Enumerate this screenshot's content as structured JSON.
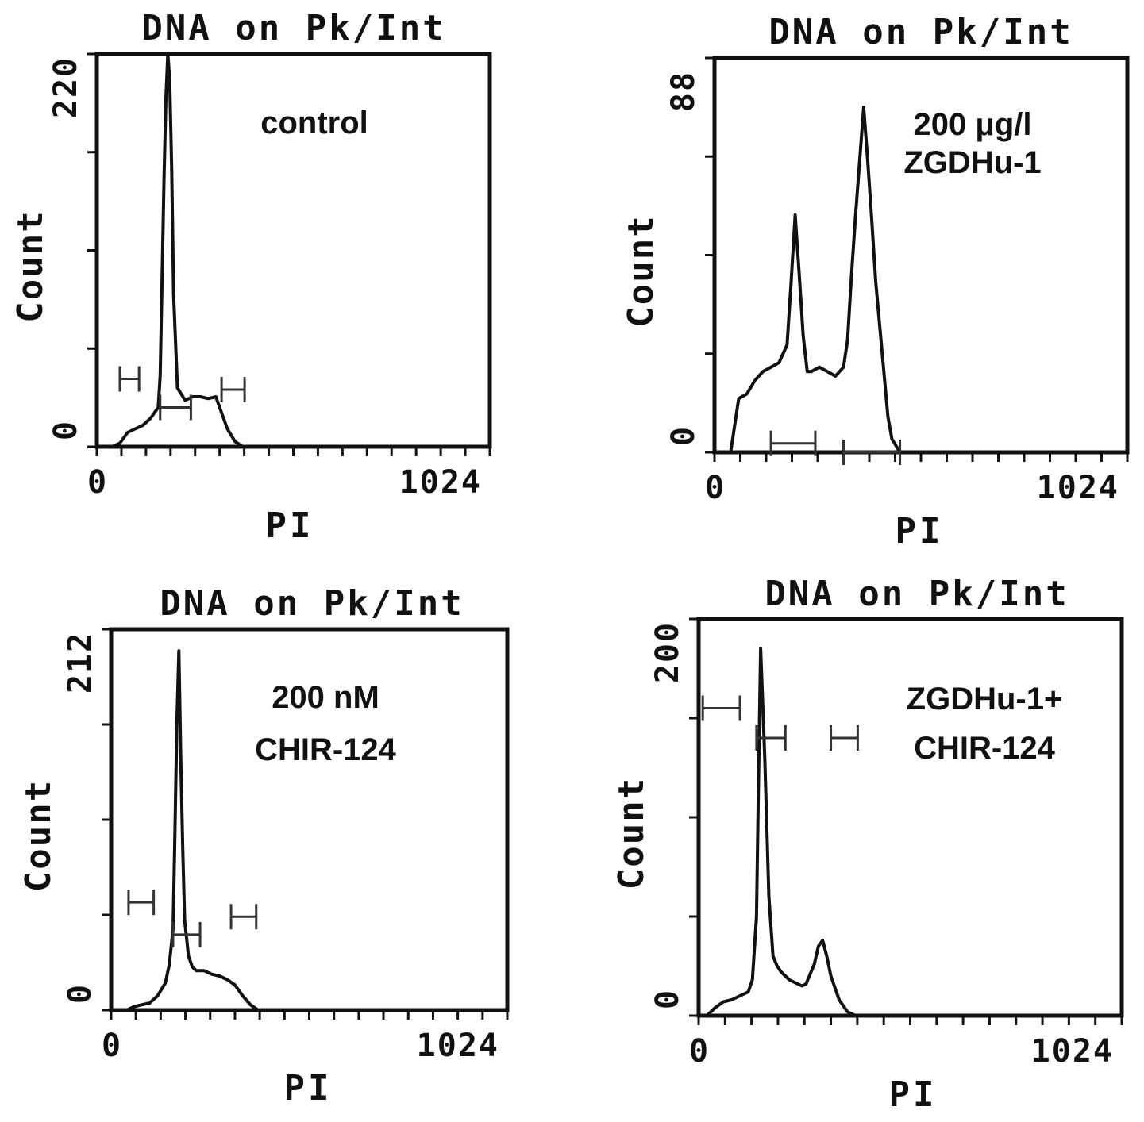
{
  "chart_data": [
    {
      "type": "area",
      "title": "DNA on Pk/Int",
      "annotation": [
        "control"
      ],
      "xlabel": "PI",
      "ylabel": "Count",
      "xlim": [
        0,
        1024
      ],
      "ylim": [
        0,
        220
      ],
      "x_tick_labels": [
        "0",
        "1024"
      ],
      "y_tick_labels": [
        "0",
        "220"
      ],
      "x": [
        0,
        40,
        60,
        80,
        100,
        120,
        140,
        160,
        165,
        170,
        175,
        180,
        185,
        190,
        195,
        200,
        210,
        230,
        250,
        270,
        290,
        310,
        320,
        340,
        360,
        380,
        1024
      ],
      "values": [
        0,
        0,
        2,
        8,
        10,
        12,
        16,
        22,
        40,
        95,
        150,
        195,
        220,
        205,
        155,
        85,
        33,
        26,
        28,
        28,
        27,
        28,
        22,
        10,
        3,
        0,
        0
      ],
      "markers": [
        {
          "x": [
            60,
            110
          ],
          "y": 38
        },
        {
          "x": [
            325,
            385
          ],
          "y": 32
        },
        {
          "x": [
            165,
            245
          ],
          "y": 22
        }
      ]
    },
    {
      "type": "area",
      "title": "DNA on Pk/Int",
      "annotation": [
        "200 μg/l",
        "ZGDHu-1"
      ],
      "xlabel": "PI",
      "ylabel": "Count",
      "xlim": [
        0,
        1024
      ],
      "ylim": [
        0,
        88
      ],
      "x_tick_labels": [
        "0",
        "1024"
      ],
      "y_tick_labels": [
        "0",
        "88"
      ],
      "x": [
        0,
        40,
        50,
        60,
        80,
        100,
        120,
        140,
        160,
        180,
        190,
        200,
        210,
        220,
        230,
        240,
        260,
        280,
        300,
        320,
        330,
        340,
        350,
        360,
        370,
        380,
        390,
        400,
        410,
        420,
        430,
        440,
        460,
        1024
      ],
      "values": [
        0,
        0,
        6,
        12,
        13,
        16,
        18,
        19,
        20,
        24,
        38,
        53,
        40,
        26,
        18,
        18,
        19,
        18,
        17,
        19,
        25,
        40,
        53,
        65,
        77,
        65,
        52,
        38,
        28,
        18,
        8,
        3,
        0,
        0
      ],
      "markers": [
        {
          "x": [
            140,
            250
          ],
          "y": 2
        },
        {
          "x": [
            320,
            460
          ],
          "y": 0
        }
      ]
    },
    {
      "type": "area",
      "title": "DNA on Pk/Int",
      "annotation": [
        "200 nM",
        "CHIR-124"
      ],
      "xlabel": "PI",
      "ylabel": "Count",
      "xlim": [
        0,
        1024
      ],
      "ylim": [
        0,
        212
      ],
      "x_tick_labels": [
        "0",
        "1024"
      ],
      "y_tick_labels": [
        "0",
        "212"
      ],
      "x": [
        0,
        40,
        60,
        80,
        100,
        120,
        140,
        150,
        160,
        165,
        170,
        175,
        180,
        185,
        190,
        200,
        210,
        220,
        240,
        260,
        280,
        300,
        320,
        340,
        360,
        380,
        1024
      ],
      "values": [
        0,
        0,
        2,
        3,
        4,
        8,
        15,
        25,
        45,
        100,
        160,
        200,
        140,
        90,
        50,
        30,
        24,
        22,
        22,
        20,
        19,
        17,
        14,
        8,
        3,
        0,
        0
      ],
      "markers": [
        {
          "x": [
            45,
            110
          ],
          "y": 60
        },
        {
          "x": [
            310,
            375
          ],
          "y": 52
        },
        {
          "x": [
            160,
            230
          ],
          "y": 42
        }
      ]
    },
    {
      "type": "area",
      "title": "DNA on Pk/Int",
      "annotation": [
        "ZGDHu-1+",
        "CHIR-124"
      ],
      "xlabel": "PI",
      "ylabel": "Count",
      "xlim": [
        0,
        1024
      ],
      "ylim": [
        0,
        200
      ],
      "x_tick_labels": [
        "0",
        "1024"
      ],
      "y_tick_labels": [
        "0",
        "200"
      ],
      "x": [
        0,
        20,
        40,
        60,
        80,
        100,
        120,
        130,
        140,
        145,
        150,
        160,
        170,
        180,
        190,
        200,
        220,
        240,
        250,
        260,
        280,
        290,
        300,
        310,
        320,
        340,
        360,
        380,
        1024
      ],
      "values": [
        0,
        0,
        4,
        7,
        8,
        10,
        12,
        18,
        50,
        120,
        185,
        130,
        60,
        30,
        25,
        22,
        18,
        16,
        15,
        16,
        26,
        35,
        38,
        30,
        20,
        8,
        2,
        0,
        0
      ],
      "markers": [
        {
          "x": [
            10,
            100
          ],
          "y": 155
        },
        {
          "x": [
            140,
            210
          ],
          "y": 140
        },
        {
          "x": [
            320,
            385
          ],
          "y": 140
        }
      ]
    }
  ]
}
